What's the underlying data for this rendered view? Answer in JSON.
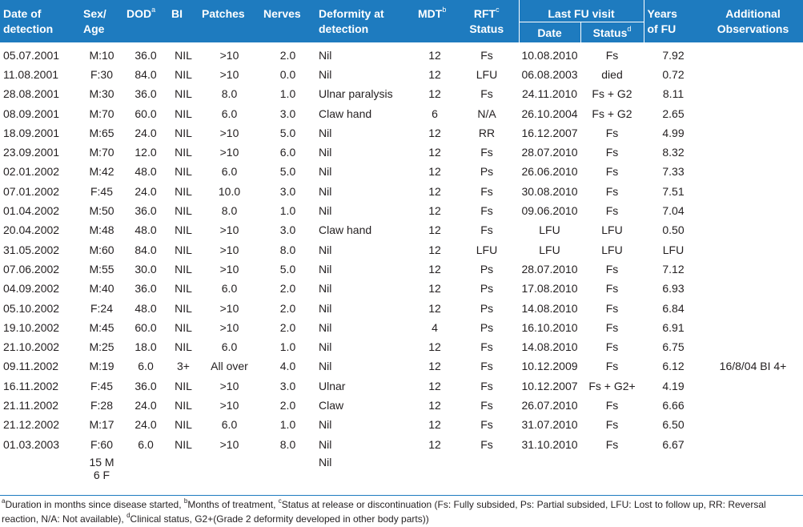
{
  "headers": {
    "date": [
      "Date of",
      "detection"
    ],
    "sex": [
      "Sex/",
      "Age"
    ],
    "dod": "DOD",
    "dod_sup": "a",
    "bi": "BI",
    "patches": "Patches",
    "nerves": "Nerves",
    "deformity": [
      "Deformity at",
      "detection"
    ],
    "mdt": "MDT",
    "mdt_sup": "b",
    "rft": "RFT",
    "rft_sup": "c",
    "rft_status": "Status",
    "last_fu": "Last FU visit",
    "fu_date": "Date",
    "fu_status": "Status",
    "fu_status_sup": "d",
    "years": [
      "Years",
      "of FU"
    ],
    "obs": [
      "Additional",
      "Observations"
    ]
  },
  "rows": [
    [
      "05.07.2001",
      "M:10",
      "36.0",
      "NIL",
      ">10",
      "2.0",
      "Nil",
      "12",
      "Fs",
      "10.08.2010",
      "Fs",
      "7.92",
      ""
    ],
    [
      "11.08.2001",
      "F:30",
      "84.0",
      "NIL",
      ">10",
      "0.0",
      "Nil",
      "12",
      "LFU",
      "06.08.2003",
      "died",
      "0.72",
      ""
    ],
    [
      "28.08.2001",
      "M:30",
      "36.0",
      "NIL",
      "8.0",
      "1.0",
      "Ulnar paralysis",
      "12",
      "Fs",
      "24.11.2010",
      "Fs + G2",
      "8.11",
      ""
    ],
    [
      "08.09.2001",
      "M:70",
      "60.0",
      "NIL",
      "6.0",
      "3.0",
      "Claw hand",
      "6",
      "N/A",
      "26.10.2004",
      "Fs + G2",
      "2.65",
      ""
    ],
    [
      "18.09.2001",
      "M:65",
      "24.0",
      "NIL",
      ">10",
      "5.0",
      "Nil",
      "12",
      "RR",
      "16.12.2007",
      "Fs",
      "4.99",
      ""
    ],
    [
      "23.09.2001",
      "M:70",
      "12.0",
      "NIL",
      ">10",
      "6.0",
      "Nil",
      "12",
      "Fs",
      "28.07.2010",
      "Fs",
      "8.32",
      ""
    ],
    [
      "02.01.2002",
      "M:42",
      "48.0",
      "NIL",
      "6.0",
      "5.0",
      "Nil",
      "12",
      "Ps",
      "26.06.2010",
      "Fs",
      "7.33",
      ""
    ],
    [
      "07.01.2002",
      "F:45",
      "24.0",
      "NIL",
      "10.0",
      "3.0",
      "Nil",
      "12",
      "Fs",
      "30.08.2010",
      "Fs",
      "7.51",
      ""
    ],
    [
      "01.04.2002",
      "M:50",
      "36.0",
      "NIL",
      "8.0",
      "1.0",
      "Nil",
      "12",
      "Fs",
      "09.06.2010",
      "Fs",
      "7.04",
      ""
    ],
    [
      "20.04.2002",
      "M:48",
      "48.0",
      "NIL",
      ">10",
      "3.0",
      "Claw hand",
      "12",
      "Fs",
      "LFU",
      "LFU",
      "0.50",
      ""
    ],
    [
      "31.05.2002",
      "M:60",
      "84.0",
      "NIL",
      ">10",
      "8.0",
      "Nil",
      "12",
      "LFU",
      "LFU",
      "LFU",
      "LFU",
      ""
    ],
    [
      "07.06.2002",
      "M:55",
      "30.0",
      "NIL",
      ">10",
      "5.0",
      "Nil",
      "12",
      "Ps",
      "28.07.2010",
      "Fs",
      "7.12",
      ""
    ],
    [
      "04.09.2002",
      "M:40",
      "36.0",
      "NIL",
      "6.0",
      "2.0",
      "Nil",
      "12",
      "Ps",
      "17.08.2010",
      "Fs",
      "6.93",
      ""
    ],
    [
      "05.10.2002",
      "F:24",
      "48.0",
      "NIL",
      ">10",
      "2.0",
      "Nil",
      "12",
      "Ps",
      "14.08.2010",
      "Fs",
      "6.84",
      ""
    ],
    [
      "19.10.2002",
      "M:45",
      "60.0",
      "NIL",
      ">10",
      "2.0",
      "Nil",
      "4",
      "Ps",
      "16.10.2010",
      "Fs",
      "6.91",
      ""
    ],
    [
      "21.10.2002",
      "M:25",
      "18.0",
      "NIL",
      "6.0",
      "1.0",
      "Nil",
      "12",
      "Fs",
      "14.08.2010",
      "Fs",
      "6.75",
      ""
    ],
    [
      "09.11.2002",
      "M:19",
      "6.0",
      "3+",
      "All over",
      "4.0",
      "Nil",
      "12",
      "Fs",
      "10.12.2009",
      "Fs",
      "6.12",
      "16/8/04 BI 4+"
    ],
    [
      "16.11.2002",
      "F:45",
      "36.0",
      "NIL",
      ">10",
      "3.0",
      "Ulnar",
      "12",
      "Fs",
      "10.12.2007",
      "Fs + G2+",
      "4.19",
      ""
    ],
    [
      "21.11.2002",
      "F:28",
      "24.0",
      "NIL",
      ">10",
      "2.0",
      "Claw",
      "12",
      "Fs",
      "26.07.2010",
      "Fs",
      "6.66",
      ""
    ],
    [
      "21.12.2002",
      "M:17",
      "24.0",
      "NIL",
      "6.0",
      "1.0",
      "Nil",
      "12",
      "Fs",
      "31.07.2010",
      "Fs",
      "6.50",
      ""
    ],
    [
      "01.03.2003",
      "F:60",
      "6.0",
      "NIL",
      ">10",
      "8.0",
      "Nil",
      "12",
      "Fs",
      "31.10.2010",
      "Fs",
      "6.67",
      ""
    ]
  ],
  "summary": {
    "sex_m": "15 M",
    "sex_f": "6 F",
    "deformity": "Nil"
  },
  "footnote": {
    "a_sup": "a",
    "a_text": "Duration in months since disease started, ",
    "b_sup": "b",
    "b_text": "Months of treatment, ",
    "c_sup": "c",
    "c_text": "Status at release or discontinuation (Fs: Fully subsided, Ps: Partial subsided, LFU: Lost to follow up, RR: Reversal reaction, N/A: Not available), ",
    "d_sup": "d",
    "d_text": "Clinical status, G2+(Grade 2 deformity developed in other body parts))"
  },
  "colors": {
    "header_bg": "#1e7bbf",
    "header_text": "#ffffff",
    "body_text": "#231f20"
  }
}
